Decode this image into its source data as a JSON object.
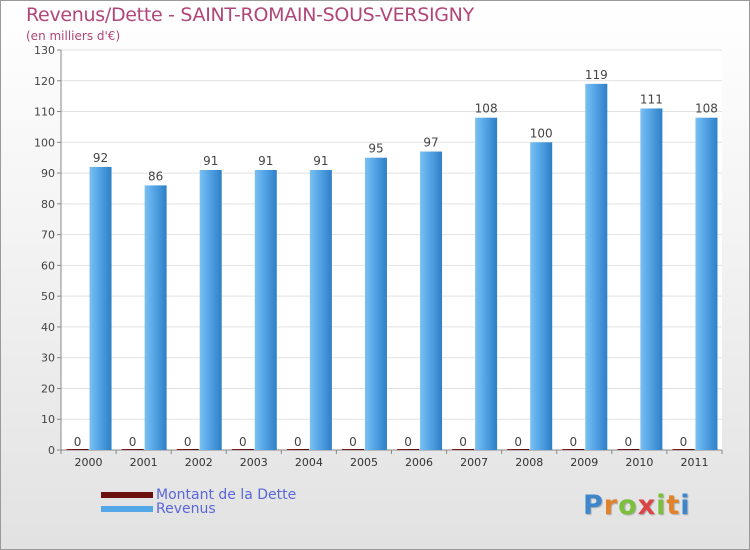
{
  "title": "Revenus/Dette - SAINT-ROMAIN-SOUS-VERSIGNY",
  "subtitle": "(en milliers d'€)",
  "logo_text": "Proxiti",
  "colors": {
    "title": "#b0467a",
    "dette": "#6b0f0f",
    "revenus": "#55a8e8",
    "legend_text": "#5a67d8"
  },
  "chart_data": {
    "type": "bar",
    "categories": [
      "2000",
      "2001",
      "2002",
      "2003",
      "2004",
      "2005",
      "2006",
      "2007",
      "2008",
      "2009",
      "2010",
      "2011"
    ],
    "series": [
      {
        "name": "Montant de la Dette",
        "color": "#6b0f0f",
        "values": [
          0,
          0,
          0,
          0,
          0,
          0,
          0,
          0,
          0,
          0,
          0,
          0
        ]
      },
      {
        "name": "Revenus",
        "color": "#55a8e8",
        "values": [
          92,
          86,
          91,
          91,
          91,
          95,
          97,
          108,
          100,
          119,
          111,
          108
        ]
      }
    ],
    "ylim": [
      0,
      130
    ],
    "yticks": [
      0,
      10,
      20,
      30,
      40,
      50,
      60,
      70,
      80,
      90,
      100,
      110,
      120,
      130
    ],
    "grid": true,
    "legend_position": "bottom-left"
  }
}
